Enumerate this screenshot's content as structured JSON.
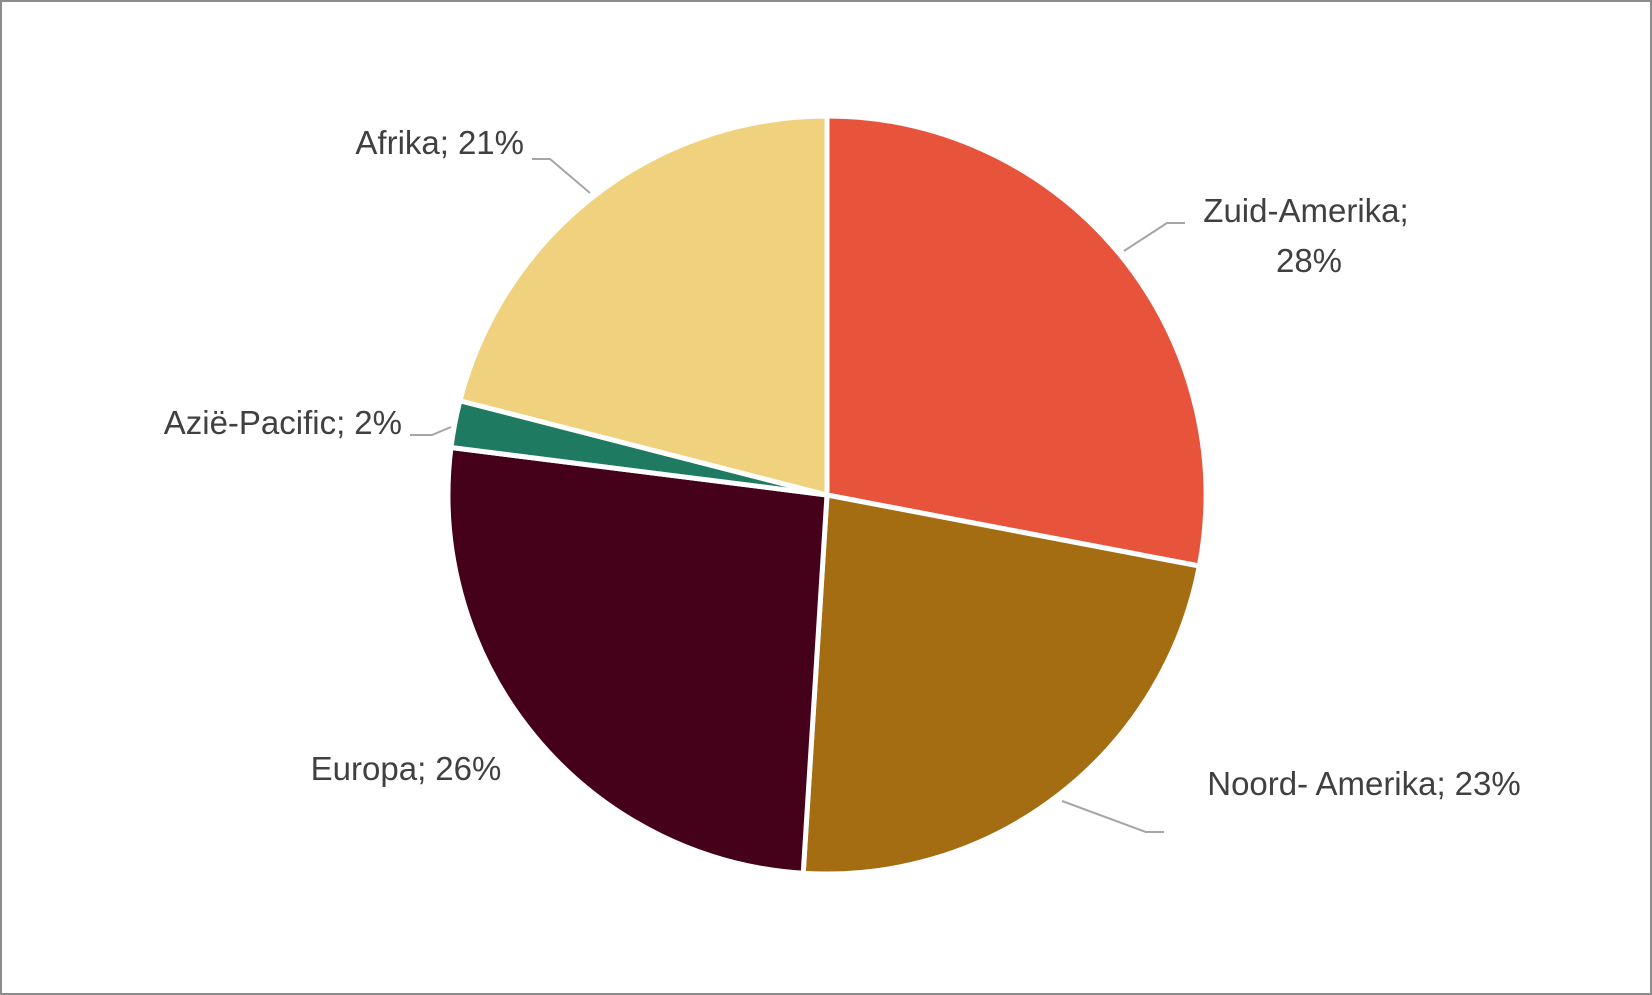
{
  "chart_data": {
    "type": "pie",
    "categories": [
      "Zuid-Amerika",
      "Noord- Amerika",
      "Europa",
      "Azië-Pacific",
      "Afrika"
    ],
    "values": [
      28,
      23,
      26,
      2,
      21
    ],
    "value_labels": [
      "28%",
      "23%",
      "26%",
      "2%",
      "21%"
    ],
    "label_separator": ";",
    "colors": [
      "#E8533B",
      "#A56D12",
      "#45001A",
      "#1E7B62",
      "#F0D27E"
    ]
  }
}
